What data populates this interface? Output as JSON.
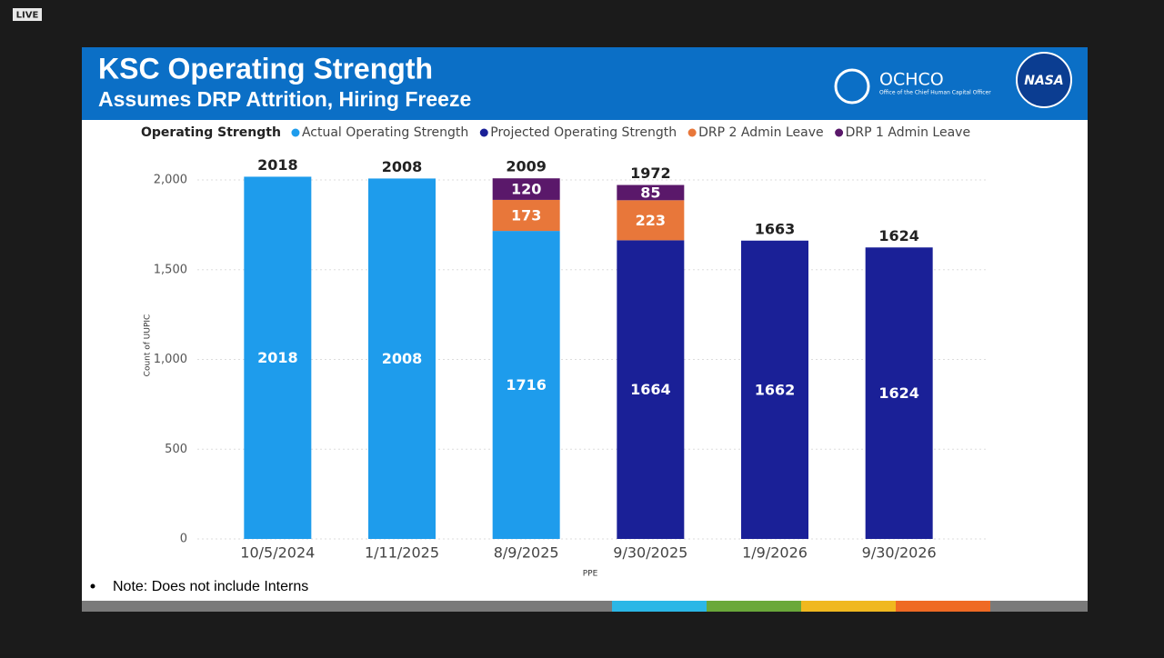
{
  "live_badge": "LIVE",
  "logo": {
    "name": "OCHCO",
    "subtitle": "Office of the Chief Human Capital Officer",
    "agency": "NASA"
  },
  "note": "Note: Does not include Interns",
  "chart_data": {
    "type": "stacked-bar",
    "title": "KSC Operating Strength",
    "subtitle": "Assumes DRP Attrition, Hiring Freeze",
    "legend_title": "Operating Strength",
    "x_label": "PPE",
    "y_label": "Count of UUPIC",
    "categories": [
      "10/5/2024",
      "1/11/2025",
      "8/9/2025",
      "9/30/2025",
      "1/9/2026",
      "9/30/2026"
    ],
    "series": [
      {
        "name": "Actual Operating Strength",
        "color": "#1e9cec",
        "values": [
          2018,
          2008,
          1716,
          null,
          null,
          null
        ]
      },
      {
        "name": "Projected Operating Strength",
        "color": "#1a2097",
        "values": [
          null,
          null,
          null,
          1664,
          1662,
          1624
        ]
      },
      {
        "name": "DRP 2 Admin Leave",
        "color": "#e8773a",
        "values": [
          null,
          null,
          173,
          223,
          null,
          null
        ]
      },
      {
        "name": "DRP 1 Admin Leave",
        "color": "#5a186a",
        "values": [
          null,
          null,
          120,
          85,
          null,
          null
        ]
      }
    ],
    "totals": [
      2018,
      2008,
      2009,
      1972,
      1663,
      1624
    ],
    "ylim": [
      0,
      2200
    ],
    "yticks": [
      0,
      500,
      {
        "value": 1000,
        "label": "1,000"
      },
      {
        "value": 1500,
        "label": "1,500"
      },
      {
        "value": 2000,
        "label": "2,000"
      }
    ],
    "grid": true
  }
}
